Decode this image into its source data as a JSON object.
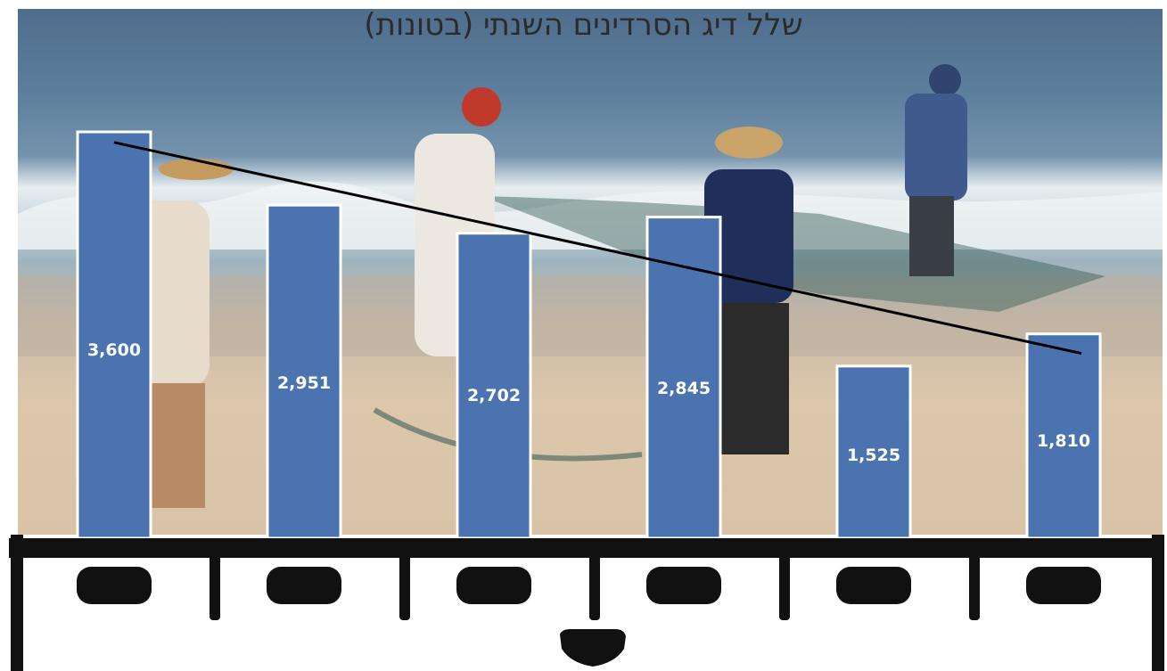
{
  "chart_data": {
    "type": "bar",
    "title": "שלל דיג הסרדינים השנתי (בטונות)",
    "xlabel": "",
    "ylabel": "",
    "categories": [
      "",
      "",
      "",
      "",
      "",
      ""
    ],
    "values": [
      3600,
      2951,
      2702,
      2845,
      1525,
      1810
    ],
    "value_labels": [
      "3,600",
      "2,951",
      "2,702",
      "2,845",
      "1,525",
      "1,810"
    ],
    "ylim": [
      0,
      3900
    ],
    "trendline": true,
    "grid": false,
    "legend": "none"
  },
  "colors": {
    "bar": "#4a73b0",
    "bar_border": "#ffffff",
    "trendline": "#000000",
    "axis": "#111111"
  }
}
